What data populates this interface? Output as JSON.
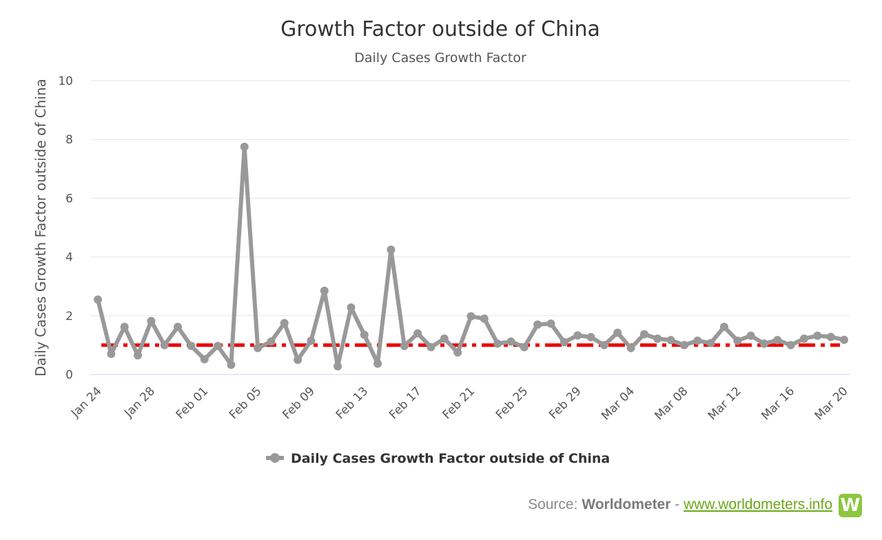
{
  "chart_data": {
    "type": "line",
    "title": "Growth Factor outside of China",
    "subtitle": "Daily Cases Growth Factor",
    "ylabel": "Daily Cases Growth Factor outside of China",
    "xlabel": "",
    "ylim": [
      0,
      10
    ],
    "yticks": [
      0,
      2,
      4,
      6,
      8,
      10
    ],
    "grid": true,
    "legend_position": "bottom",
    "categories": [
      "Jan 24",
      "Jan 25",
      "Jan 26",
      "Jan 27",
      "Jan 28",
      "Jan 29",
      "Jan 30",
      "Jan 31",
      "Feb 01",
      "Feb 02",
      "Feb 03",
      "Feb 04",
      "Feb 05",
      "Feb 06",
      "Feb 07",
      "Feb 08",
      "Feb 09",
      "Feb 10",
      "Feb 11",
      "Feb 12",
      "Feb 13",
      "Feb 14",
      "Feb 15",
      "Feb 16",
      "Feb 17",
      "Feb 18",
      "Feb 19",
      "Feb 20",
      "Feb 21",
      "Feb 22",
      "Feb 23",
      "Feb 24",
      "Feb 25",
      "Feb 26",
      "Feb 27",
      "Feb 28",
      "Feb 29",
      "Mar 01",
      "Mar 02",
      "Mar 03",
      "Mar 04",
      "Mar 05",
      "Mar 06",
      "Mar 07",
      "Mar 08",
      "Mar 09",
      "Mar 10",
      "Mar 11",
      "Mar 12",
      "Mar 13",
      "Mar 14",
      "Mar 15",
      "Mar 16",
      "Mar 17",
      "Mar 18",
      "Mar 19",
      "Mar 20"
    ],
    "tick_labels": [
      "Jan 24",
      "Jan 28",
      "Feb 01",
      "Feb 05",
      "Feb 09",
      "Feb 13",
      "Feb 17",
      "Feb 21",
      "Feb 25",
      "Feb 29",
      "Mar 04",
      "Mar 08",
      "Mar 12",
      "Mar 16",
      "Mar 20"
    ],
    "series": [
      {
        "name": "Daily Cases Growth Factor outside of China",
        "color": "#999999",
        "values": [
          2.55,
          0.7,
          1.62,
          0.65,
          1.82,
          1.0,
          1.62,
          0.97,
          0.52,
          0.97,
          0.33,
          7.75,
          0.9,
          1.12,
          1.75,
          0.5,
          1.15,
          2.85,
          0.28,
          2.28,
          1.35,
          0.37,
          4.25,
          0.97,
          1.4,
          0.93,
          1.22,
          0.75,
          1.98,
          1.9,
          1.05,
          1.12,
          0.93,
          1.7,
          1.73,
          1.1,
          1.33,
          1.27,
          1.0,
          1.42,
          0.9,
          1.37,
          1.22,
          1.17,
          1.0,
          1.15,
          1.07,
          1.62,
          1.15,
          1.32,
          1.05,
          1.17,
          1.0,
          1.22,
          1.32,
          1.28,
          1.18
        ]
      }
    ],
    "reference_line": {
      "value": 1.0,
      "color": "#ee0000",
      "style": "dash-dot"
    }
  },
  "source": {
    "prefix": "Source: ",
    "brand": "Worldometer",
    "separator": " - ",
    "link": "www.worldometers.info",
    "logo_letter": "W"
  }
}
